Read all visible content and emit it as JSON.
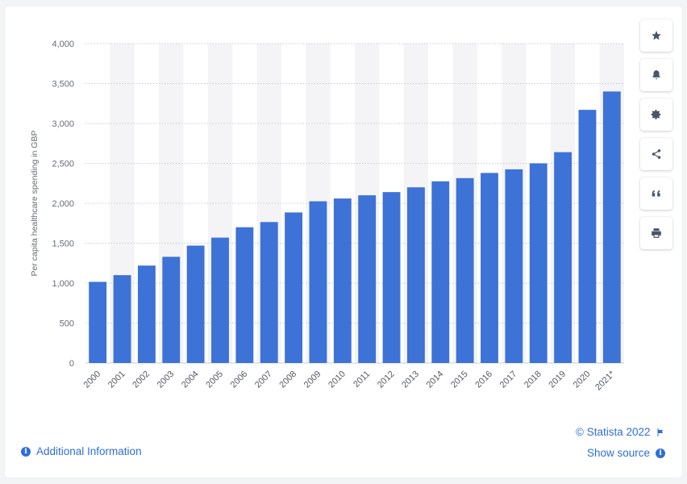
{
  "chart_data": {
    "type": "bar",
    "ylabel": "Per capita healthcare spending in GBP",
    "xlabel": "",
    "ylim": [
      0,
      4000
    ],
    "yticks": [
      0,
      500,
      1000,
      1500,
      2000,
      2500,
      3000,
      3500,
      4000
    ],
    "ytick_labels": [
      "0",
      "500",
      "1,000",
      "1,500",
      "2,000",
      "2,500",
      "3,000",
      "3,500",
      "4,000"
    ],
    "categories": [
      "2000",
      "2001",
      "2002",
      "2003",
      "2004",
      "2005",
      "2006",
      "2007",
      "2008",
      "2009",
      "2010",
      "2011",
      "2012",
      "2013",
      "2014",
      "2015",
      "2016",
      "2017",
      "2018",
      "2019",
      "2020",
      "2021*"
    ],
    "values": [
      1016,
      1100,
      1220,
      1330,
      1470,
      1570,
      1700,
      1765,
      1885,
      2025,
      2060,
      2100,
      2140,
      2200,
      2275,
      2315,
      2380,
      2425,
      2500,
      2640,
      3170,
      3400
    ],
    "bar_color": "#3d72d7",
    "grid": true
  },
  "toolbar": {
    "buttons": [
      {
        "name": "favorite-button",
        "icon": "star-icon"
      },
      {
        "name": "notification-button",
        "icon": "bell-icon"
      },
      {
        "name": "settings-button",
        "icon": "gear-icon"
      },
      {
        "name": "share-button",
        "icon": "share-icon"
      },
      {
        "name": "cite-button",
        "icon": "quote-icon"
      },
      {
        "name": "print-button",
        "icon": "print-icon"
      }
    ]
  },
  "footer": {
    "copyright": "© Statista 2022",
    "show_source": "Show source",
    "additional_info": "Additional Information"
  }
}
